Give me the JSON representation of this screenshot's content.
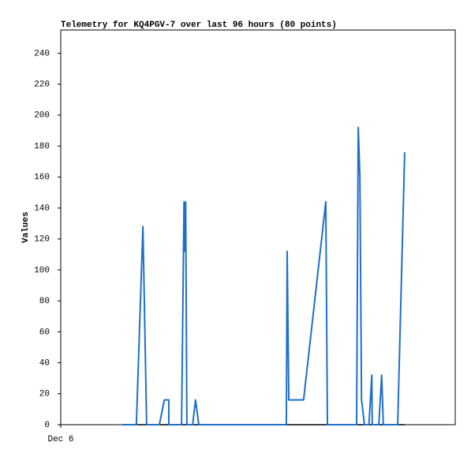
{
  "chart_data": {
    "type": "line",
    "title": "Telemetry for KQ4PGV-7 over last 96 hours (80 points)",
    "y_label": "Values",
    "xlim": [
      0,
      96
    ],
    "xticks": [
      {
        "value": 0,
        "label": "Dec 6"
      }
    ],
    "ylim": [
      0,
      255
    ],
    "yticks": [
      0,
      20,
      40,
      60,
      80,
      100,
      120,
      140,
      160,
      180,
      200,
      220,
      240
    ],
    "series": [
      {
        "color": "#000000",
        "x": [
          15.0,
          83.7
        ],
        "values": [
          0,
          0
        ]
      },
      {
        "color": "#1f6fc8",
        "x": [
          15.0,
          18.4,
          20.0,
          20.9,
          24.0,
          25.2,
          26.3,
          26.3,
          29.4,
          30.0,
          30.2,
          30.4,
          30.7,
          32.1,
          32.8,
          33.6,
          54.9,
          55.1,
          55.5,
          59.1,
          64.5,
          64.9,
          72.0,
          72.4,
          72.8,
          73.2,
          73.9,
          75.0,
          75.7,
          75.8,
          77.4,
          78.1,
          78.5,
          82.0,
          83.7
        ],
        "values": [
          0,
          0,
          128,
          0,
          0,
          16,
          16,
          0,
          0,
          144,
          112,
          144,
          0,
          0,
          16,
          0,
          0,
          112,
          16,
          16,
          144,
          0,
          0,
          192,
          160,
          16,
          0,
          0,
          32,
          0,
          0,
          32,
          0,
          0,
          176
        ]
      }
    ]
  }
}
